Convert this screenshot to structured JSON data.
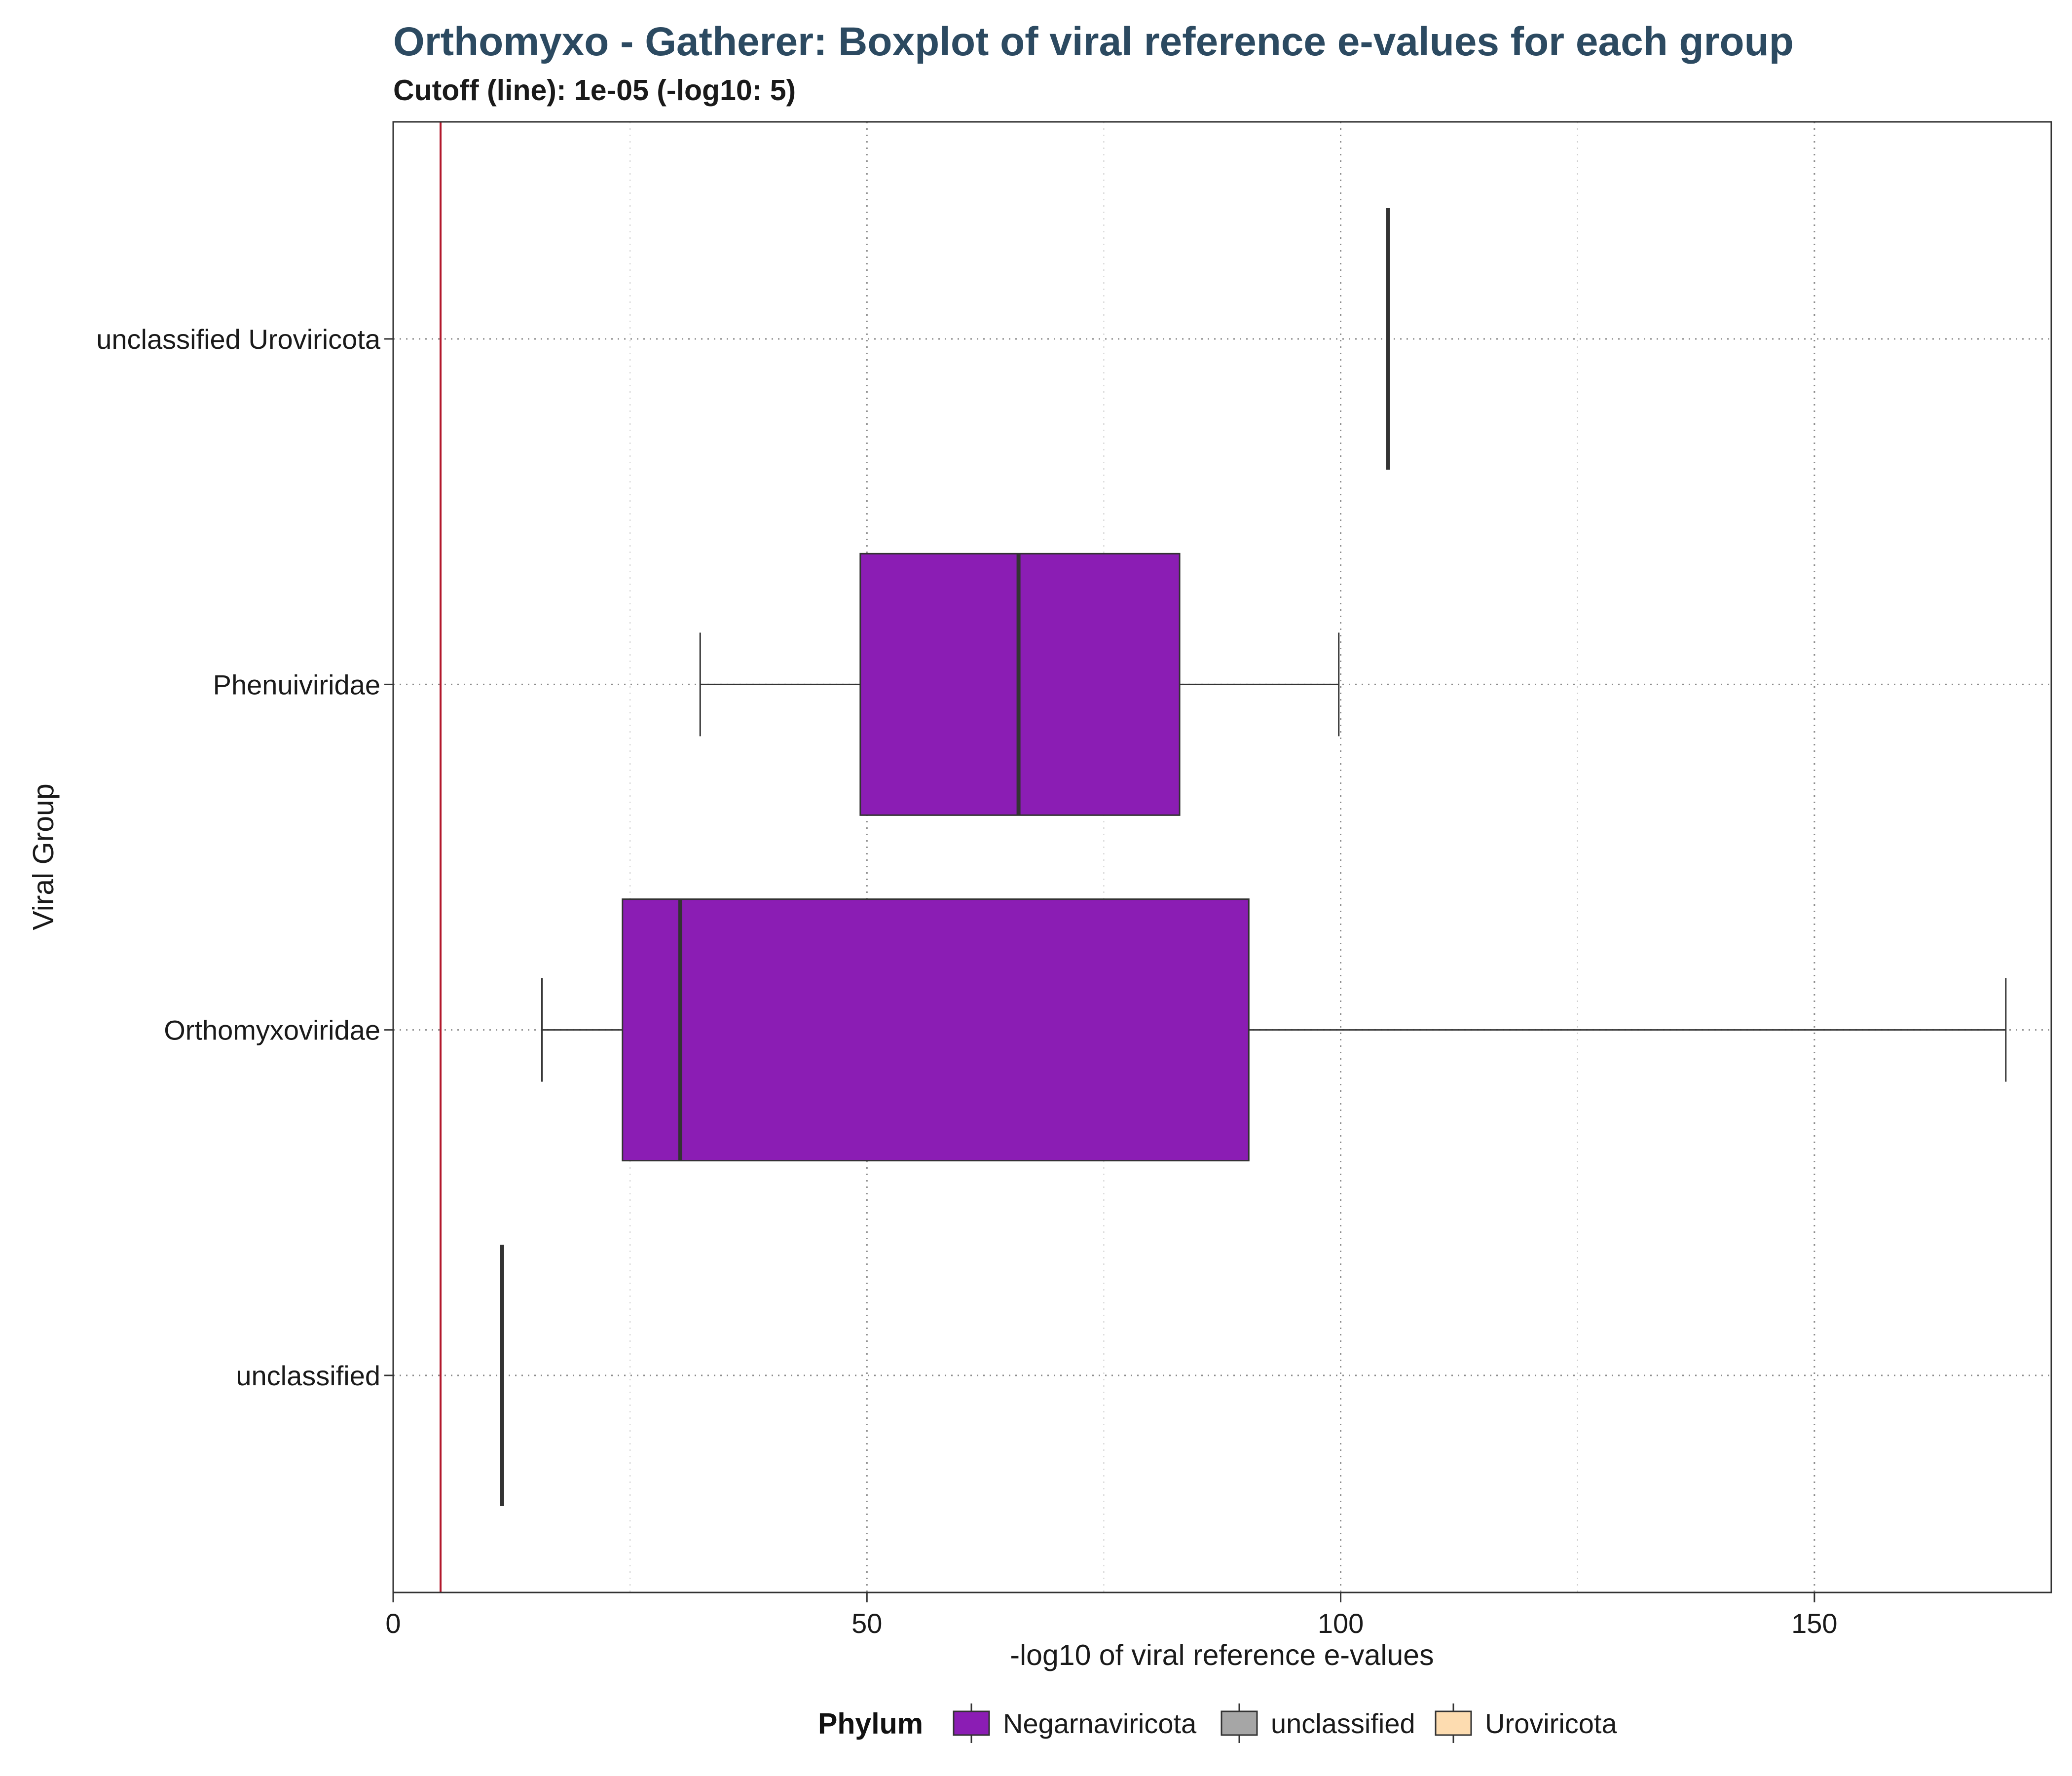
{
  "chart_data": {
    "type": "boxplot",
    "title": "Orthomyxo - Gatherer: Boxplot of viral reference e-values for each group",
    "subtitle": "Cutoff (line): 1e-05 (-log10: 5)",
    "xlabel": "-log10 of viral reference e-values",
    "ylabel": "Viral Group",
    "xlim": [
      0,
      175
    ],
    "x_ticks": [
      0,
      50,
      100,
      150
    ],
    "x_tick_labels": [
      "0",
      "50",
      "100",
      "150"
    ],
    "cutoff": 5,
    "cutoff_color": "#b2182b",
    "categories": [
      "unclassified",
      "Orthomyxoviridae",
      "Phenuiviridae",
      "unclassified Uroviricota"
    ],
    "boxes": [
      {
        "group": "unclassified",
        "phylum": "unclassified",
        "min": 11.5,
        "q1": 11.5,
        "median": 11.5,
        "q3": 11.5,
        "max": 11.5
      },
      {
        "group": "Orthomyxoviridae",
        "phylum": "Negarnaviricota",
        "min": 15.7,
        "q1": 24.2,
        "median": 30.3,
        "q3": 90.3,
        "max": 170.2
      },
      {
        "group": "Phenuiviridae",
        "phylum": "Negarnaviricota",
        "min": 32.4,
        "q1": 49.3,
        "median": 66.0,
        "q3": 83.0,
        "max": 99.8
      },
      {
        "group": "unclassified Uroviricota",
        "phylum": "Uroviricota",
        "min": 105.0,
        "q1": 105.0,
        "median": 105.0,
        "q3": 105.0,
        "max": 105.0
      }
    ],
    "legend": {
      "title": "Phylum",
      "position": "bottom",
      "entries": [
        {
          "label": "Negarnaviricota",
          "color": "#8b1db4"
        },
        {
          "label": "unclassified",
          "color": "#a6a6a6"
        },
        {
          "label": "Uroviricota",
          "color": "#fddcb0"
        }
      ]
    },
    "grid": true
  }
}
